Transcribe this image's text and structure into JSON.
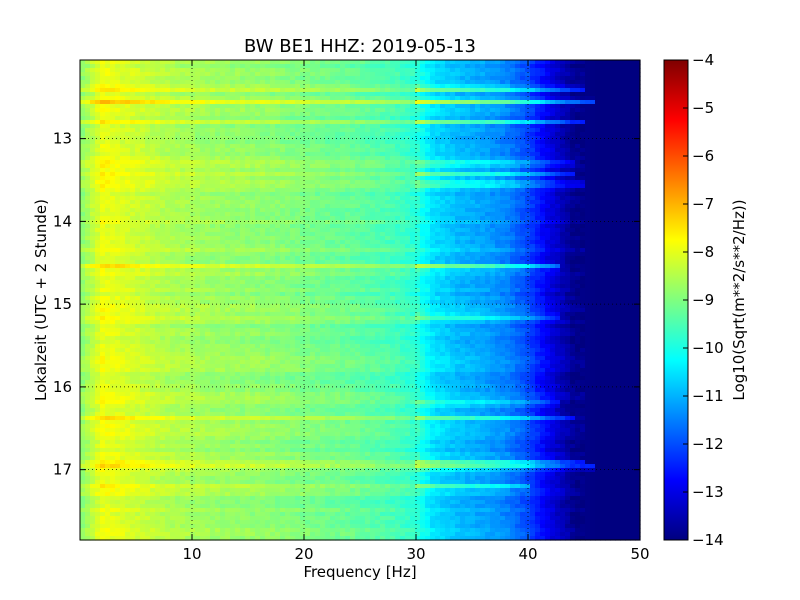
{
  "chart_data": {
    "type": "heatmap",
    "title": "BW BE1 HHZ: 2019-05-13",
    "xlabel": "Frequency [Hz]",
    "ylabel": "Lokalzeit (UTC + 2 Stunde)",
    "colorbar_label": "Log10(Sqrt(m**2/s**2/Hz))",
    "colormap": "jet",
    "xlim": [
      0,
      50
    ],
    "ylim": [
      17.85,
      12.05
    ],
    "x_ticks": [
      "10",
      "20",
      "30",
      "40",
      "50"
    ],
    "y_ticks": [
      "13",
      "14",
      "15",
      "16",
      "17"
    ],
    "colorbar_ticks": [
      "-4",
      "-5",
      "-6",
      "-7",
      "-8",
      "-9",
      "-10",
      "-11",
      "-12",
      "-13",
      "-14"
    ],
    "clim": [
      -14,
      -4
    ],
    "grid": true,
    "baseline_profile": {
      "frequency_hz": [
        0,
        2,
        4,
        8,
        12,
        16,
        20,
        24,
        28,
        30,
        31.5,
        34,
        36,
        38,
        40,
        42,
        44,
        46,
        50
      ],
      "log10_amplitude": [
        -8.9,
        -7.9,
        -8.1,
        -8.5,
        -8.7,
        -8.8,
        -9.0,
        -9.2,
        -9.5,
        -9.8,
        -10.5,
        -10.9,
        -11.1,
        -11.4,
        -12.0,
        -13.0,
        -13.8,
        -14.0,
        -14.0
      ]
    },
    "bright_bands": [
      {
        "time": 12.4,
        "strength": 0.9,
        "max_freq_hz": 45
      },
      {
        "time": 12.55,
        "strength": 1.0,
        "max_freq_hz": 46
      },
      {
        "time": 12.8,
        "strength": 0.7,
        "max_freq_hz": 45
      },
      {
        "time": 13.3,
        "strength": 0.6,
        "max_freq_hz": 44
      },
      {
        "time": 13.43,
        "strength": 0.6,
        "max_freq_hz": 44
      },
      {
        "time": 13.55,
        "strength": 0.8,
        "max_freq_hz": 45
      },
      {
        "time": 14.55,
        "strength": 0.9,
        "max_freq_hz": 43
      },
      {
        "time": 15.15,
        "strength": 0.7,
        "max_freq_hz": 43
      },
      {
        "time": 16.2,
        "strength": 0.6,
        "max_freq_hz": 43
      },
      {
        "time": 16.38,
        "strength": 0.5,
        "max_freq_hz": 44
      },
      {
        "time": 16.9,
        "strength": 0.8,
        "max_freq_hz": 45
      },
      {
        "time": 16.97,
        "strength": 1.0,
        "max_freq_hz": 46
      },
      {
        "time": 17.2,
        "strength": 0.5,
        "max_freq_hz": 40
      }
    ]
  }
}
